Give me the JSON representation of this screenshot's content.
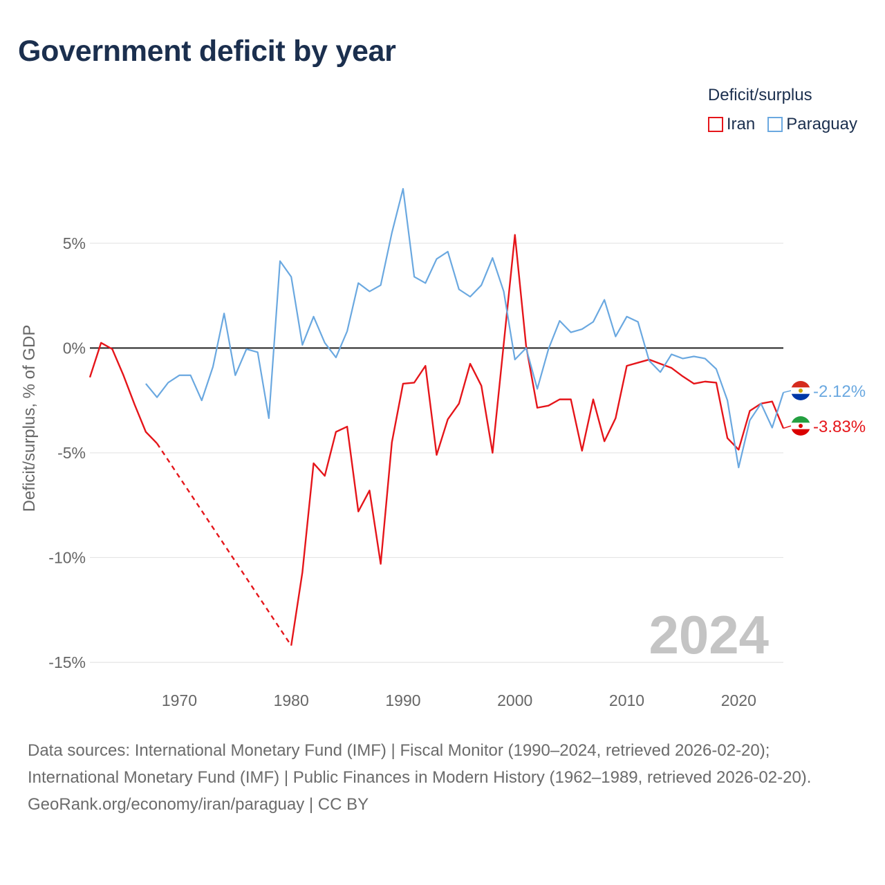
{
  "title": "Government deficit by year",
  "legend": {
    "title": "Deficit/surplus",
    "items": [
      {
        "label": "Iran",
        "color": "#e5151a"
      },
      {
        "label": "Paraguay",
        "color": "#6aa8e0"
      }
    ]
  },
  "sources": {
    "line1": "Data sources: International Monetary Fund (IMF) | Fiscal Monitor (1990–2024, retrieved 2026-02-20); International Monetary Fund (IMF) | Public Finances in Modern History (1962–1989, retrieved 2026-02-20).",
    "credit": "GeoRank.org/economy/iran/paraguay | CC BY"
  },
  "chart_data": {
    "type": "line",
    "title": "Government deficit by year",
    "ylabel": "Deficit/surplus, % of GDP",
    "xlabel": "",
    "xlim": [
      1962,
      2024
    ],
    "ylim": [
      -15,
      7.7
    ],
    "yticks": [
      5,
      0,
      -5,
      -10,
      -15
    ],
    "ytick_labels": [
      "5%",
      "0%",
      "-5%",
      "-10%",
      "-15%"
    ],
    "xticks": [
      1970,
      1980,
      1990,
      2000,
      2010,
      2020
    ],
    "xtick_labels": [
      "1970",
      "1980",
      "1990",
      "2000",
      "2010",
      "2020"
    ],
    "year_watermark": "2024",
    "series": [
      {
        "name": "Iran",
        "color": "#e5151a",
        "end_label": "-3.83%",
        "gap": {
          "from": 1968,
          "to": 1980
        },
        "points": [
          [
            1962,
            -1.4
          ],
          [
            1963,
            0.25
          ],
          [
            1964,
            -0.05
          ],
          [
            1965,
            -1.3
          ],
          [
            1966,
            -2.7
          ],
          [
            1967,
            -4.0
          ],
          [
            1968,
            -4.55
          ],
          [
            1980,
            -14.2
          ],
          [
            1981,
            -10.7
          ],
          [
            1982,
            -5.5
          ],
          [
            1983,
            -6.1
          ],
          [
            1984,
            -4.0
          ],
          [
            1985,
            -3.75
          ],
          [
            1986,
            -7.8
          ],
          [
            1987,
            -6.8
          ],
          [
            1988,
            -10.3
          ],
          [
            1989,
            -4.5
          ],
          [
            1990,
            -1.7
          ],
          [
            1991,
            -1.65
          ],
          [
            1992,
            -0.85
          ],
          [
            1993,
            -5.1
          ],
          [
            1994,
            -3.4
          ],
          [
            1995,
            -2.65
          ],
          [
            1996,
            -0.75
          ],
          [
            1997,
            -1.8
          ],
          [
            1998,
            -5.0
          ],
          [
            1999,
            0.2
          ],
          [
            2000,
            5.4
          ],
          [
            2001,
            0.1
          ],
          [
            2002,
            -2.85
          ],
          [
            2003,
            -2.75
          ],
          [
            2004,
            -2.45
          ],
          [
            2005,
            -2.45
          ],
          [
            2006,
            -4.9
          ],
          [
            2007,
            -2.45
          ],
          [
            2008,
            -4.45
          ],
          [
            2009,
            -3.35
          ],
          [
            2010,
            -0.85
          ],
          [
            2011,
            -0.7
          ],
          [
            2012,
            -0.55
          ],
          [
            2013,
            -0.75
          ],
          [
            2014,
            -0.95
          ],
          [
            2015,
            -1.35
          ],
          [
            2016,
            -1.7
          ],
          [
            2017,
            -1.6
          ],
          [
            2018,
            -1.65
          ],
          [
            2019,
            -4.3
          ],
          [
            2020,
            -4.85
          ],
          [
            2021,
            -3.0
          ],
          [
            2022,
            -2.65
          ],
          [
            2023,
            -2.55
          ],
          [
            2024,
            -3.83
          ]
        ]
      },
      {
        "name": "Paraguay",
        "color": "#6aa8e0",
        "end_label": "-2.12%",
        "points": [
          [
            1967,
            -1.7
          ],
          [
            1968,
            -2.35
          ],
          [
            1969,
            -1.65
          ],
          [
            1970,
            -1.3
          ],
          [
            1971,
            -1.3
          ],
          [
            1972,
            -2.5
          ],
          [
            1973,
            -0.9
          ],
          [
            1974,
            1.65
          ],
          [
            1975,
            -1.3
          ],
          [
            1976,
            -0.05
          ],
          [
            1977,
            -0.2
          ],
          [
            1978,
            -3.35
          ],
          [
            1979,
            4.15
          ],
          [
            1980,
            3.4
          ],
          [
            1981,
            0.15
          ],
          [
            1982,
            1.5
          ],
          [
            1983,
            0.25
          ],
          [
            1984,
            -0.45
          ],
          [
            1985,
            0.8
          ],
          [
            1986,
            3.1
          ],
          [
            1987,
            2.7
          ],
          [
            1988,
            3.0
          ],
          [
            1989,
            5.5
          ],
          [
            1990,
            7.6
          ],
          [
            1991,
            3.4
          ],
          [
            1992,
            3.1
          ],
          [
            1993,
            4.25
          ],
          [
            1994,
            4.6
          ],
          [
            1995,
            2.8
          ],
          [
            1996,
            2.45
          ],
          [
            1997,
            3.0
          ],
          [
            1998,
            4.3
          ],
          [
            1999,
            2.7
          ],
          [
            2000,
            -0.55
          ],
          [
            2001,
            0.0
          ],
          [
            2002,
            -1.95
          ],
          [
            2003,
            -0.05
          ],
          [
            2004,
            1.3
          ],
          [
            2005,
            0.75
          ],
          [
            2006,
            0.9
          ],
          [
            2007,
            1.25
          ],
          [
            2008,
            2.3
          ],
          [
            2009,
            0.55
          ],
          [
            2010,
            1.5
          ],
          [
            2011,
            1.25
          ],
          [
            2012,
            -0.6
          ],
          [
            2013,
            -1.15
          ],
          [
            2014,
            -0.3
          ],
          [
            2015,
            -0.5
          ],
          [
            2016,
            -0.4
          ],
          [
            2017,
            -0.5
          ],
          [
            2018,
            -1.0
          ],
          [
            2019,
            -2.5
          ],
          [
            2020,
            -5.7
          ],
          [
            2021,
            -3.45
          ],
          [
            2022,
            -2.65
          ],
          [
            2023,
            -3.8
          ],
          [
            2024,
            -2.12
          ]
        ]
      }
    ]
  }
}
